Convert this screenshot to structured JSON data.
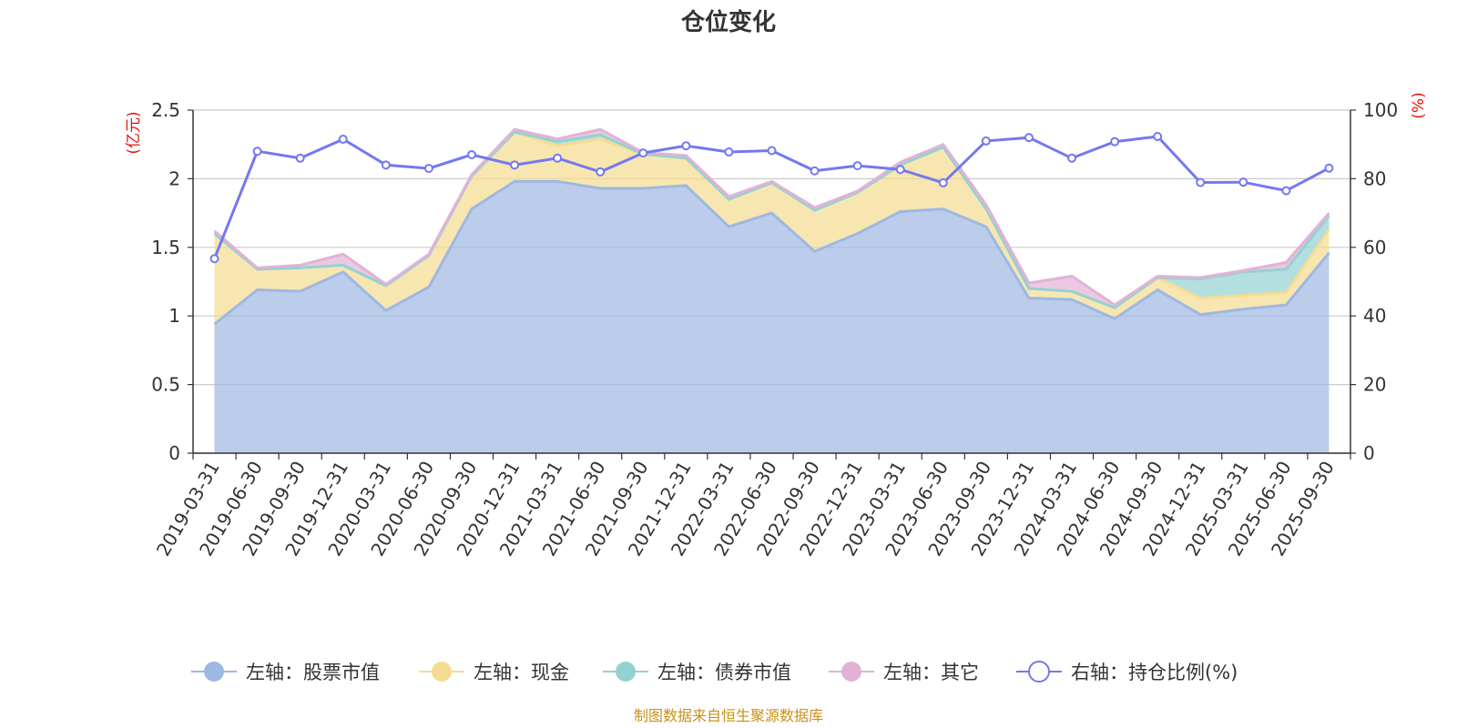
{
  "chart_data": {
    "type": "area",
    "title": "仓位变化",
    "left_axis_unit": "(亿元)",
    "right_axis_unit": "(%)",
    "left_ylim": [
      0,
      2.5
    ],
    "left_ticks": [
      "0",
      "0.5",
      "1",
      "1.5",
      "2",
      "2.5"
    ],
    "right_ylim": [
      0,
      100
    ],
    "right_ticks": [
      "0",
      "20",
      "40",
      "60",
      "80",
      "100"
    ],
    "categories": [
      "2019-03-31",
      "2019-06-30",
      "2019-09-30",
      "2019-12-31",
      "2020-03-31",
      "2020-06-30",
      "2020-09-30",
      "2020-12-31",
      "2021-03-31",
      "2021-06-30",
      "2021-09-30",
      "2021-12-31",
      "2022-03-31",
      "2022-06-30",
      "2022-09-30",
      "2022-12-31",
      "2023-03-31",
      "2023-06-30",
      "2023-09-30",
      "2023-12-31",
      "2024-03-31",
      "2024-06-30",
      "2024-09-30",
      "2024-12-31",
      "2025-03-31",
      "2025-06-30",
      "2025-09-30"
    ],
    "series": [
      {
        "name": "左轴：股票市值",
        "axis": "left",
        "color": "#9eb8e2",
        "values": [
          0.94,
          1.19,
          1.18,
          1.32,
          1.04,
          1.21,
          1.78,
          1.98,
          1.98,
          1.93,
          1.93,
          1.95,
          1.65,
          1.75,
          1.47,
          1.6,
          1.76,
          1.78,
          1.65,
          1.13,
          1.12,
          0.98,
          1.19,
          1.01,
          1.05,
          1.08,
          1.46
        ]
      },
      {
        "name": "左轴：现金",
        "axis": "left",
        "color": "#f5dc90",
        "values": [
          0.66,
          0.15,
          0.17,
          0.05,
          0.18,
          0.23,
          0.24,
          0.36,
          0.26,
          0.36,
          0.25,
          0.2,
          0.2,
          0.22,
          0.3,
          0.3,
          0.34,
          0.45,
          0.13,
          0.07,
          0.06,
          0.08,
          0.09,
          0.12,
          0.1,
          0.09,
          0.17
        ]
      },
      {
        "name": "左轴：债券市值",
        "axis": "left",
        "color": "#94d2d2",
        "values": [
          0,
          0,
          0,
          0,
          0,
          0,
          0,
          0,
          0.03,
          0.03,
          0,
          0,
          0,
          0,
          0,
          0,
          0,
          0,
          0,
          0,
          0,
          0,
          0,
          0.14,
          0.17,
          0.17,
          0.1
        ]
      },
      {
        "name": "左轴：其它",
        "axis": "left",
        "color": "#e2b2d6",
        "values": [
          0.02,
          0.01,
          0.02,
          0.08,
          0.01,
          0.01,
          0.01,
          0.02,
          0.02,
          0.04,
          0.01,
          0.02,
          0.02,
          0.01,
          0.02,
          0.01,
          0.02,
          0.02,
          0.03,
          0.04,
          0.11,
          0.02,
          0.01,
          0.01,
          0.01,
          0.05,
          0.02
        ]
      },
      {
        "name": "右轴：持仓比例(%)",
        "axis": "right",
        "color": "#7478f0",
        "values": [
          56.7,
          88.0,
          86.0,
          91.5,
          84.0,
          83.0,
          87.0,
          84.0,
          86.0,
          82.0,
          87.5,
          89.6,
          87.8,
          88.2,
          82.3,
          83.8,
          82.7,
          78.8,
          91.0,
          92.0,
          86.0,
          90.8,
          92.3,
          78.9,
          79.0,
          76.5,
          83.1
        ]
      }
    ],
    "legend": [
      "左轴：股票市值",
      "左轴：现金",
      "左轴：债券市值",
      "左轴：其它",
      "右轴：持仓比例(%)"
    ],
    "legend_position": "bottom"
  },
  "source_note": "制图数据来自恒生聚源数据库"
}
